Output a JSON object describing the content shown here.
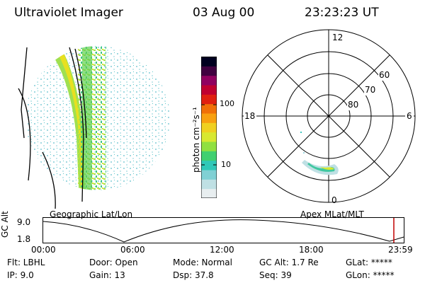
{
  "header": {
    "instrument": "Ultraviolet Imager",
    "date": "03 Aug 00",
    "time": "23:23:23 UT"
  },
  "geo_panel": {
    "label": "Geographic Lat/Lon"
  },
  "colorbar": {
    "unit_label": "photon cm⁻²s⁻¹",
    "tick_100": "100",
    "tick_10": "10",
    "colors": [
      "#e8eef0",
      "#bfe0e4",
      "#80d0d4",
      "#30c8b8",
      "#40d070",
      "#90e040",
      "#d8e830",
      "#f0d020",
      "#f8a010",
      "#f07008",
      "#e02010",
      "#c00030",
      "#900060",
      "#400040",
      "#000020"
    ]
  },
  "polar_plot": {
    "label": "Apex MLat/MLT",
    "mlt_top": "12",
    "mlt_left": "18",
    "mlt_right": "6",
    "mlt_bottom": "0",
    "lat_60": "60",
    "lat_70": "70",
    "lat_80": "80"
  },
  "timeline": {
    "ylabel": "GC Alt",
    "y_max": "9.0",
    "y_min": "1.8",
    "times": [
      "00:00",
      "06:00",
      "12:00",
      "18:00",
      "23:59"
    ],
    "marker_color": "#c00000"
  },
  "info": {
    "flt": "Flt: LBHL",
    "ip": "IP:  9.0",
    "door": "Door: Open",
    "gain": "Gain: 13",
    "mode": "Mode: Normal",
    "dsp": "Dsp:   37.8",
    "gcalt": "GC Alt: 1.7 Re",
    "seq": "Seq: 39",
    "glat": "GLat: *****",
    "glon": "GLon: *****"
  }
}
